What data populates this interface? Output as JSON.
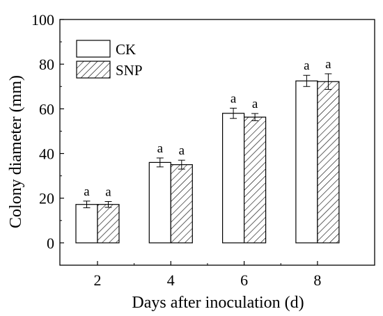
{
  "chart_data": {
    "type": "bar",
    "title": "",
    "xlabel": "Days after inoculation (d)",
    "ylabel": "Colony diameter (mm)",
    "categories": [
      "2",
      "4",
      "6",
      "8"
    ],
    "ylim": [
      -10,
      100
    ],
    "yticks": [
      0,
      20,
      40,
      60,
      80,
      100
    ],
    "legend_position": "top-left",
    "series": [
      {
        "name": "CK",
        "values": [
          17.2,
          36.0,
          58.0,
          72.5
        ],
        "errors": [
          1.5,
          2.0,
          2.3,
          2.5
        ],
        "labels": [
          "a",
          "a",
          "a",
          "a"
        ],
        "pattern": "solid-white"
      },
      {
        "name": "SNP",
        "values": [
          17.2,
          35.0,
          56.3,
          72.2
        ],
        "errors": [
          1.3,
          2.0,
          1.6,
          3.5
        ],
        "labels": [
          "a",
          "a",
          "a",
          "a"
        ],
        "pattern": "diagonal-hatch"
      }
    ]
  }
}
